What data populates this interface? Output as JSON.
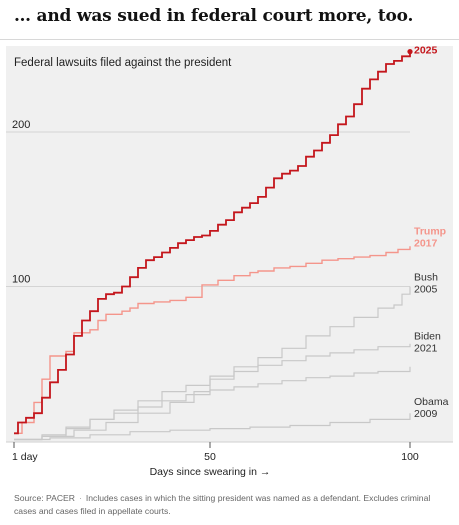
{
  "headline": "… and was sued in federal court more, too.",
  "source": {
    "label": "Source: PACER",
    "separator": "·",
    "note": "Includes cases in which the sitting president was named as a defendant. Excludes criminal cases and cases filed in appellate courts."
  },
  "chart_data": {
    "type": "line",
    "title": "Federal lawsuits filed against the president",
    "xlabel": "Days since swearing in →",
    "ylabel": "",
    "xlim": [
      1,
      100
    ],
    "ylim": [
      0,
      255
    ],
    "x_ticks": [
      {
        "value": 1,
        "label": "1 day"
      },
      {
        "value": 50,
        "label": "50"
      },
      {
        "value": 100,
        "label": "100"
      }
    ],
    "y_ticks": [
      {
        "value": 100,
        "label": "100"
      },
      {
        "value": 200,
        "label": "200"
      }
    ],
    "grid": true,
    "series": [
      {
        "name": "Trump",
        "year": "2025",
        "color": "#c4161c",
        "emphasis": "primary",
        "points": [
          [
            1,
            5
          ],
          [
            2,
            12
          ],
          [
            4,
            15
          ],
          [
            6,
            18
          ],
          [
            8,
            28
          ],
          [
            10,
            38
          ],
          [
            12,
            46
          ],
          [
            14,
            56
          ],
          [
            16,
            68
          ],
          [
            18,
            78
          ],
          [
            20,
            84
          ],
          [
            22,
            92
          ],
          [
            24,
            95
          ],
          [
            26,
            96
          ],
          [
            28,
            100
          ],
          [
            30,
            106
          ],
          [
            32,
            112
          ],
          [
            34,
            117
          ],
          [
            36,
            119
          ],
          [
            38,
            122
          ],
          [
            40,
            125
          ],
          [
            42,
            128
          ],
          [
            44,
            130
          ],
          [
            46,
            132
          ],
          [
            48,
            133
          ],
          [
            50,
            136
          ],
          [
            52,
            140
          ],
          [
            54,
            143
          ],
          [
            56,
            148
          ],
          [
            58,
            151
          ],
          [
            60,
            154
          ],
          [
            62,
            158
          ],
          [
            64,
            164
          ],
          [
            66,
            170
          ],
          [
            68,
            173
          ],
          [
            70,
            175
          ],
          [
            72,
            178
          ],
          [
            74,
            184
          ],
          [
            76,
            188
          ],
          [
            78,
            193
          ],
          [
            80,
            198
          ],
          [
            82,
            205
          ],
          [
            84,
            210
          ],
          [
            86,
            218
          ],
          [
            88,
            228
          ],
          [
            90,
            234
          ],
          [
            92,
            239
          ],
          [
            94,
            244
          ],
          [
            96,
            246
          ],
          [
            98,
            249
          ],
          [
            100,
            252
          ]
        ]
      },
      {
        "name": "Trump",
        "year": "2017",
        "color": "#f4958b",
        "emphasis": "secondary",
        "points": [
          [
            1,
            5
          ],
          [
            3,
            12
          ],
          [
            6,
            25
          ],
          [
            8,
            40
          ],
          [
            10,
            55
          ],
          [
            14,
            58
          ],
          [
            16,
            70
          ],
          [
            20,
            72
          ],
          [
            22,
            78
          ],
          [
            24,
            82
          ],
          [
            28,
            84
          ],
          [
            30,
            86
          ],
          [
            32,
            89
          ],
          [
            36,
            90
          ],
          [
            40,
            91
          ],
          [
            44,
            93
          ],
          [
            48,
            94
          ],
          [
            48,
            101
          ],
          [
            52,
            104
          ],
          [
            56,
            107
          ],
          [
            60,
            109
          ],
          [
            62,
            110
          ],
          [
            66,
            112
          ],
          [
            70,
            113
          ],
          [
            74,
            115
          ],
          [
            78,
            117
          ],
          [
            82,
            118
          ],
          [
            86,
            119
          ],
          [
            90,
            120
          ],
          [
            94,
            122
          ],
          [
            97,
            124
          ],
          [
            100,
            126
          ]
        ]
      },
      {
        "name": "Bush",
        "year": "2005",
        "color": "#c8c8c8",
        "emphasis": "muted",
        "points": [
          [
            1,
            1
          ],
          [
            8,
            3
          ],
          [
            14,
            8
          ],
          [
            20,
            14
          ],
          [
            26,
            20
          ],
          [
            32,
            26
          ],
          [
            38,
            32
          ],
          [
            44,
            36
          ],
          [
            50,
            42
          ],
          [
            56,
            48
          ],
          [
            62,
            54
          ],
          [
            68,
            60
          ],
          [
            74,
            68
          ],
          [
            80,
            74
          ],
          [
            86,
            80
          ],
          [
            92,
            86
          ],
          [
            96,
            88
          ],
          [
            98,
            95
          ],
          [
            100,
            100
          ]
        ]
      },
      {
        "name": "Biden",
        "year": "2021",
        "color": "#c8c8c8",
        "emphasis": "muted",
        "points": [
          [
            1,
            1
          ],
          [
            8,
            3
          ],
          [
            16,
            7
          ],
          [
            24,
            12
          ],
          [
            32,
            18
          ],
          [
            40,
            25
          ],
          [
            46,
            32
          ],
          [
            50,
            40
          ],
          [
            56,
            45
          ],
          [
            62,
            49
          ],
          [
            68,
            52
          ],
          [
            74,
            55
          ],
          [
            80,
            57
          ],
          [
            86,
            59
          ],
          [
            92,
            61
          ],
          [
            100,
            63
          ]
        ]
      },
      {
        "name": "Obama",
        "year": "2009",
        "color": "#c8c8c8",
        "emphasis": "muted",
        "points": [
          [
            1,
            1
          ],
          [
            10,
            2
          ],
          [
            20,
            4
          ],
          [
            30,
            6
          ],
          [
            40,
            7
          ],
          [
            50,
            8
          ],
          [
            60,
            9
          ],
          [
            70,
            10
          ],
          [
            80,
            12
          ],
          [
            90,
            14
          ],
          [
            100,
            18
          ]
        ]
      },
      {
        "name": "",
        "year": "",
        "color": "#c8c8c8",
        "emphasis": "muted",
        "points": [
          [
            1,
            1
          ],
          [
            8,
            4
          ],
          [
            14,
            9
          ],
          [
            20,
            14
          ],
          [
            26,
            18
          ],
          [
            32,
            22
          ],
          [
            38,
            26
          ],
          [
            44,
            30
          ],
          [
            50,
            33
          ],
          [
            56,
            35
          ],
          [
            62,
            37
          ],
          [
            68,
            39
          ],
          [
            74,
            41
          ],
          [
            80,
            42
          ],
          [
            86,
            44
          ],
          [
            92,
            45
          ],
          [
            100,
            48
          ]
        ]
      }
    ]
  }
}
